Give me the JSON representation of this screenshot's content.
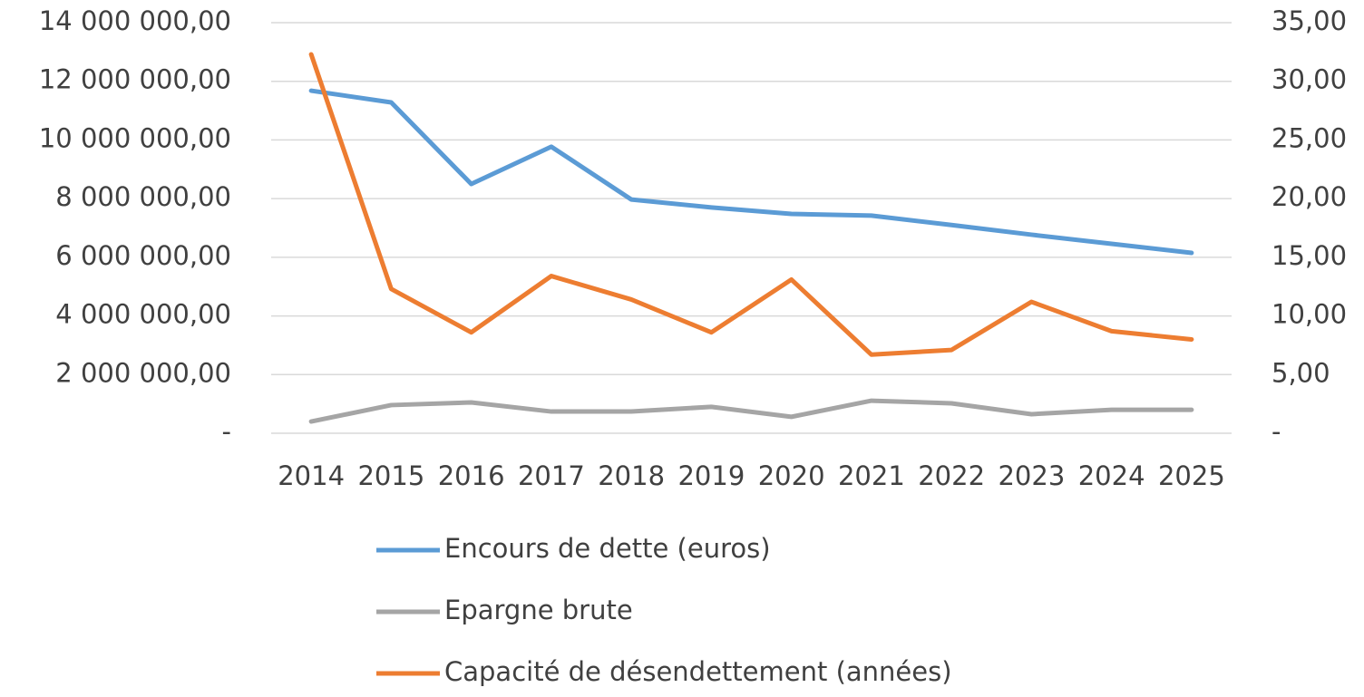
{
  "chart_data": {
    "type": "line",
    "categories": [
      "2014",
      "2015",
      "2016",
      "2017",
      "2018",
      "2019",
      "2020",
      "2021",
      "2022",
      "2023",
      "2024",
      "2025"
    ],
    "series": [
      {
        "name": "Encours de dette (euros)",
        "color": "#5b9bd5",
        "values": [
          11680000,
          11280000,
          8500000,
          9770000,
          7970000,
          7700000,
          7480000,
          7420000,
          7100000,
          6770000,
          6460000,
          6150000
        ]
      },
      {
        "name": "Epargne brute",
        "color": "#a5a5a5",
        "values": [
          400000,
          960000,
          1050000,
          740000,
          740000,
          900000,
          560000,
          1110000,
          1020000,
          650000,
          800000,
          800000
        ]
      },
      {
        "name": "Capacité de désendettement (années)",
        "color": "#ed7d31",
        "axis": "y2",
        "values": [
          32.3,
          12.3,
          8.6,
          13.4,
          11.4,
          8.6,
          13.1,
          6.7,
          7.1,
          11.2,
          8.7,
          8.0
        ]
      }
    ],
    "ylim": [
      0,
      14000000
    ],
    "yticks": [
      {
        "value": 0,
        "label": "-"
      },
      {
        "value": 2000000,
        "label": "2 000 000,00"
      },
      {
        "value": 4000000,
        "label": "4 000 000,00"
      },
      {
        "value": 6000000,
        "label": "6 000 000,00"
      },
      {
        "value": 8000000,
        "label": "8 000 000,00"
      },
      {
        "value": 10000000,
        "label": "10 000 000,00"
      },
      {
        "value": 12000000,
        "label": "12 000 000,00"
      },
      {
        "value": 14000000,
        "label": "14 000 000,00"
      }
    ],
    "y2lim": [
      0,
      35
    ],
    "y2ticks": [
      {
        "value": 0,
        "label": "-"
      },
      {
        "value": 5,
        "label": "5,00"
      },
      {
        "value": 10,
        "label": "10,00"
      },
      {
        "value": 15,
        "label": "15,00"
      },
      {
        "value": 20,
        "label": "20,00"
      },
      {
        "value": 25,
        "label": "25,00"
      },
      {
        "value": 30,
        "label": "30,00"
      },
      {
        "value": 35,
        "label": "35,00"
      }
    ],
    "grid": true,
    "legend": "bottom"
  }
}
